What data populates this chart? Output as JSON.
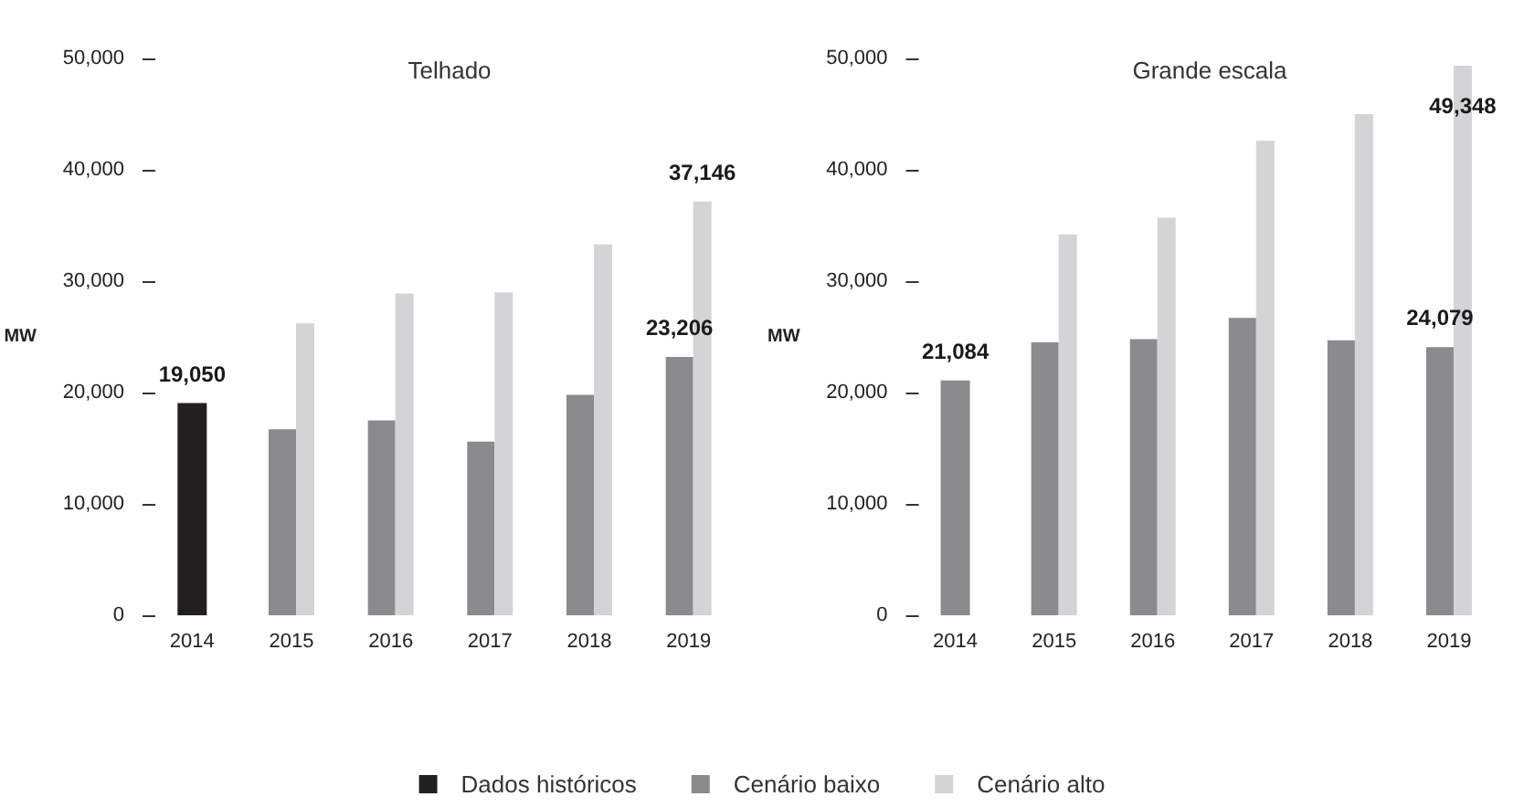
{
  "chart_data": [
    {
      "type": "bar",
      "title": "Telhado",
      "ylabel": "MW",
      "categories": [
        "2014",
        "2015",
        "2016",
        "2017",
        "2018",
        "2019"
      ],
      "series": [
        {
          "name": "Dados históricos",
          "color": "#231f20",
          "values": [
            19050,
            null,
            null,
            null,
            null,
            null
          ],
          "value_labels": [
            "19,050",
            null,
            null,
            null,
            null,
            null
          ]
        },
        {
          "name": "Cenário baixo",
          "color": "#8b8b8d",
          "values": [
            null,
            16700,
            17500,
            15600,
            19800,
            23206
          ],
          "value_labels": [
            null,
            null,
            null,
            null,
            null,
            "23,206"
          ]
        },
        {
          "name": "Cenário alto",
          "color": "#d4d4d6",
          "values": [
            null,
            26200,
            28900,
            29000,
            33300,
            37146
          ],
          "value_labels": [
            null,
            null,
            null,
            null,
            null,
            "37,146"
          ]
        }
      ],
      "ylim": [
        0,
        50000
      ],
      "yticks": [
        0,
        {
          "value": 10000,
          "label": "10,000"
        },
        {
          "value": 20000,
          "label": "20,000"
        },
        {
          "value": 30000,
          "label": "30,000"
        },
        {
          "value": 40000,
          "label": "40,000"
        },
        {
          "value": 50000,
          "label": "50,000"
        }
      ],
      "legend": "bottom"
    },
    {
      "type": "bar",
      "title": "Grande escala",
      "ylabel": "MW",
      "categories": [
        "2014",
        "2015",
        "2016",
        "2017",
        "2018",
        "2019"
      ],
      "series": [
        {
          "name": "Cenário baixo",
          "color": "#8b8b8d",
          "values": [
            21084,
            24500,
            24800,
            26700,
            24700,
            24079
          ],
          "value_labels": [
            "21,084",
            null,
            null,
            null,
            null,
            "24,079"
          ]
        },
        {
          "name": "Cenário alto",
          "color": "#d4d4d6",
          "values": [
            null,
            34200,
            35700,
            42600,
            45000,
            49348
          ],
          "value_labels": [
            null,
            null,
            null,
            null,
            null,
            "49,348"
          ]
        }
      ],
      "ylim": [
        0,
        50000
      ],
      "yticks": [
        0,
        {
          "value": 10000,
          "label": "10,000"
        },
        {
          "value": 20000,
          "label": "20,000"
        },
        {
          "value": 30000,
          "label": "30,000"
        },
        {
          "value": 40000,
          "label": "40,000"
        },
        {
          "value": 50000,
          "label": "50,000"
        }
      ]
    }
  ]
}
